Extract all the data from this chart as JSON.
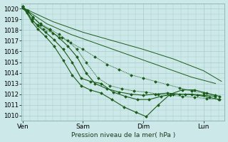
{
  "bg_color": "#cce8e8",
  "grid_color": "#aacccc",
  "line_color": "#1a5c1a",
  "xlabel": "Pression niveau de la mer( hPa )",
  "xtick_labels": [
    "Ven",
    "Sam",
    "Dim",
    "Lun"
  ],
  "xtick_positions": [
    0,
    1,
    2,
    3
  ],
  "ylim": [
    1009.5,
    1020.5
  ],
  "yticks": [
    1010,
    1011,
    1012,
    1013,
    1014,
    1015,
    1016,
    1017,
    1018,
    1019,
    1020
  ],
  "xlim": [
    -0.02,
    3.35
  ],
  "lines": [
    {
      "x": [
        0.0,
        0.5,
        1.0,
        1.5,
        2.0,
        2.5,
        3.0,
        3.3
      ],
      "y": [
        1020.1,
        1018.8,
        1017.8,
        1017.0,
        1016.2,
        1015.3,
        1014.2,
        1013.2
      ],
      "style": "solid",
      "marker": null,
      "lw": 0.7
    },
    {
      "x": [
        0.0,
        0.4,
        0.8,
        1.2,
        1.6,
        2.0,
        2.4,
        2.8,
        3.2
      ],
      "y": [
        1020.1,
        1018.6,
        1017.6,
        1016.8,
        1016.0,
        1015.2,
        1014.4,
        1013.6,
        1013.0
      ],
      "style": "solid",
      "marker": null,
      "lw": 0.7
    },
    {
      "x": [
        0.0,
        0.07,
        0.15,
        0.25,
        0.35,
        0.5,
        0.65,
        0.8,
        1.0,
        1.2,
        1.4,
        1.6,
        1.8,
        2.0,
        2.2,
        2.4,
        2.6,
        2.8,
        3.0,
        3.2
      ],
      "y": [
        1020.2,
        1019.8,
        1019.0,
        1018.5,
        1018.1,
        1017.7,
        1017.3,
        1016.8,
        1016.2,
        1015.5,
        1014.8,
        1014.3,
        1013.8,
        1013.5,
        1013.2,
        1012.9,
        1012.6,
        1012.3,
        1012.1,
        1011.9
      ],
      "style": "dotted",
      "marker": "D",
      "lw": 0.7
    },
    {
      "x": [
        0.0,
        0.08,
        0.17,
        0.3,
        0.45,
        0.6,
        0.75,
        0.9,
        1.05,
        1.25,
        1.45,
        1.65,
        1.85,
        2.05,
        2.25,
        2.45,
        2.65,
        2.85,
        3.05,
        3.25
      ],
      "y": [
        1020.2,
        1019.8,
        1019.2,
        1018.6,
        1018.1,
        1017.6,
        1017.0,
        1016.2,
        1015.0,
        1013.5,
        1012.8,
        1012.5,
        1012.3,
        1012.2,
        1012.0,
        1011.9,
        1011.8,
        1011.7,
        1011.6,
        1011.5
      ],
      "style": "dotted",
      "marker": "D",
      "lw": 0.7
    },
    {
      "x": [
        0.0,
        0.08,
        0.17,
        0.3,
        0.45,
        0.6,
        0.75,
        0.9,
        1.05,
        1.2,
        1.4,
        1.6,
        1.8,
        2.0,
        2.2,
        2.4,
        2.6,
        2.8,
        3.0,
        3.2
      ],
      "y": [
        1020.2,
        1019.8,
        1019.2,
        1018.5,
        1018.0,
        1017.3,
        1016.5,
        1015.5,
        1014.0,
        1013.0,
        1012.5,
        1012.2,
        1012.0,
        1011.9,
        1012.0,
        1012.1,
        1012.0,
        1012.0,
        1011.9,
        1011.8
      ],
      "style": "solid",
      "marker": "D",
      "lw": 0.8
    },
    {
      "x": [
        0.0,
        0.07,
        0.15,
        0.25,
        0.38,
        0.52,
        0.67,
        0.82,
        0.97,
        1.12,
        1.3,
        1.5,
        1.7,
        1.9,
        2.1,
        2.3,
        2.5,
        2.7,
        2.9,
        3.1,
        3.27
      ],
      "y": [
        1020.1,
        1019.7,
        1019.0,
        1018.4,
        1017.8,
        1017.1,
        1016.2,
        1015.0,
        1013.5,
        1013.2,
        1013.0,
        1012.2,
        1011.8,
        1011.5,
        1011.5,
        1011.8,
        1012.0,
        1012.0,
        1011.9,
        1011.7,
        1011.5
      ],
      "style": "solid",
      "marker": "D",
      "lw": 0.8
    },
    {
      "x": [
        0.0,
        0.07,
        0.15,
        0.25,
        0.38,
        0.52,
        0.67,
        0.82,
        0.97,
        1.12,
        1.3,
        1.48,
        1.68,
        1.88,
        2.05,
        2.25,
        2.45,
        2.65,
        2.85,
        3.05,
        3.27
      ],
      "y": [
        1020.1,
        1019.6,
        1018.8,
        1018.1,
        1017.4,
        1016.5,
        1015.2,
        1013.8,
        1012.8,
        1012.4,
        1012.1,
        1011.5,
        1010.8,
        1010.3,
        1009.9,
        1011.0,
        1012.0,
        1012.4,
        1012.4,
        1012.1,
        1011.8
      ],
      "style": "solid",
      "marker": "D",
      "lw": 0.8
    }
  ]
}
